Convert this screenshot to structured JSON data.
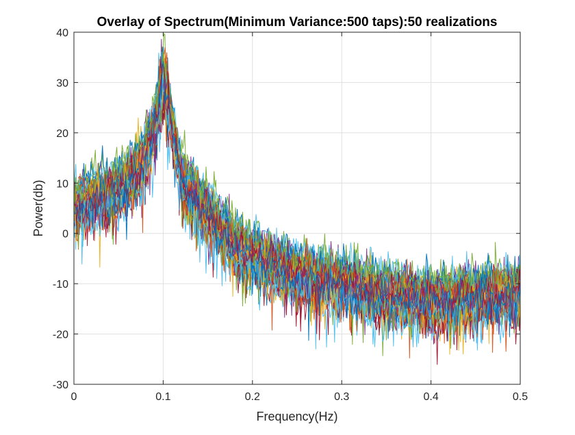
{
  "chart_data": {
    "type": "line",
    "title": "Overlay of Spectrum(Minimum Variance:500 taps):50 realizations",
    "xlabel": "Frequency(Hz)",
    "ylabel": "Power(db)",
    "xlim": [
      0,
      0.5
    ],
    "ylim": [
      -30,
      40
    ],
    "xticks": [
      0,
      0.1,
      0.2,
      0.3,
      0.4,
      0.5
    ],
    "xtick_labels": [
      "0",
      "0.1",
      "0.2",
      "0.3",
      "0.4",
      "0.5"
    ],
    "yticks": [
      -30,
      -20,
      -10,
      0,
      10,
      20,
      30,
      40
    ],
    "ytick_labels": [
      "-30",
      "-20",
      "-10",
      "0",
      "10",
      "20",
      "30",
      "40"
    ],
    "grid": true,
    "realizations": 50,
    "colors": [
      "#0072bd",
      "#d95319",
      "#edb120",
      "#7e2f8e",
      "#77ac30",
      "#4dbeee",
      "#a2142f"
    ],
    "mean_curve": {
      "x": [
        0,
        0.02,
        0.04,
        0.06,
        0.07,
        0.08,
        0.09,
        0.095,
        0.1,
        0.105,
        0.11,
        0.12,
        0.13,
        0.15,
        0.18,
        0.2,
        0.25,
        0.3,
        0.35,
        0.4,
        0.45,
        0.5
      ],
      "y": [
        6,
        7,
        8,
        10.5,
        12.5,
        15.5,
        21,
        26,
        31,
        27,
        22,
        12,
        8,
        4,
        -2,
        -4.5,
        -8,
        -10,
        -12,
        -13,
        -12.5,
        -11.5
      ]
    }
  }
}
